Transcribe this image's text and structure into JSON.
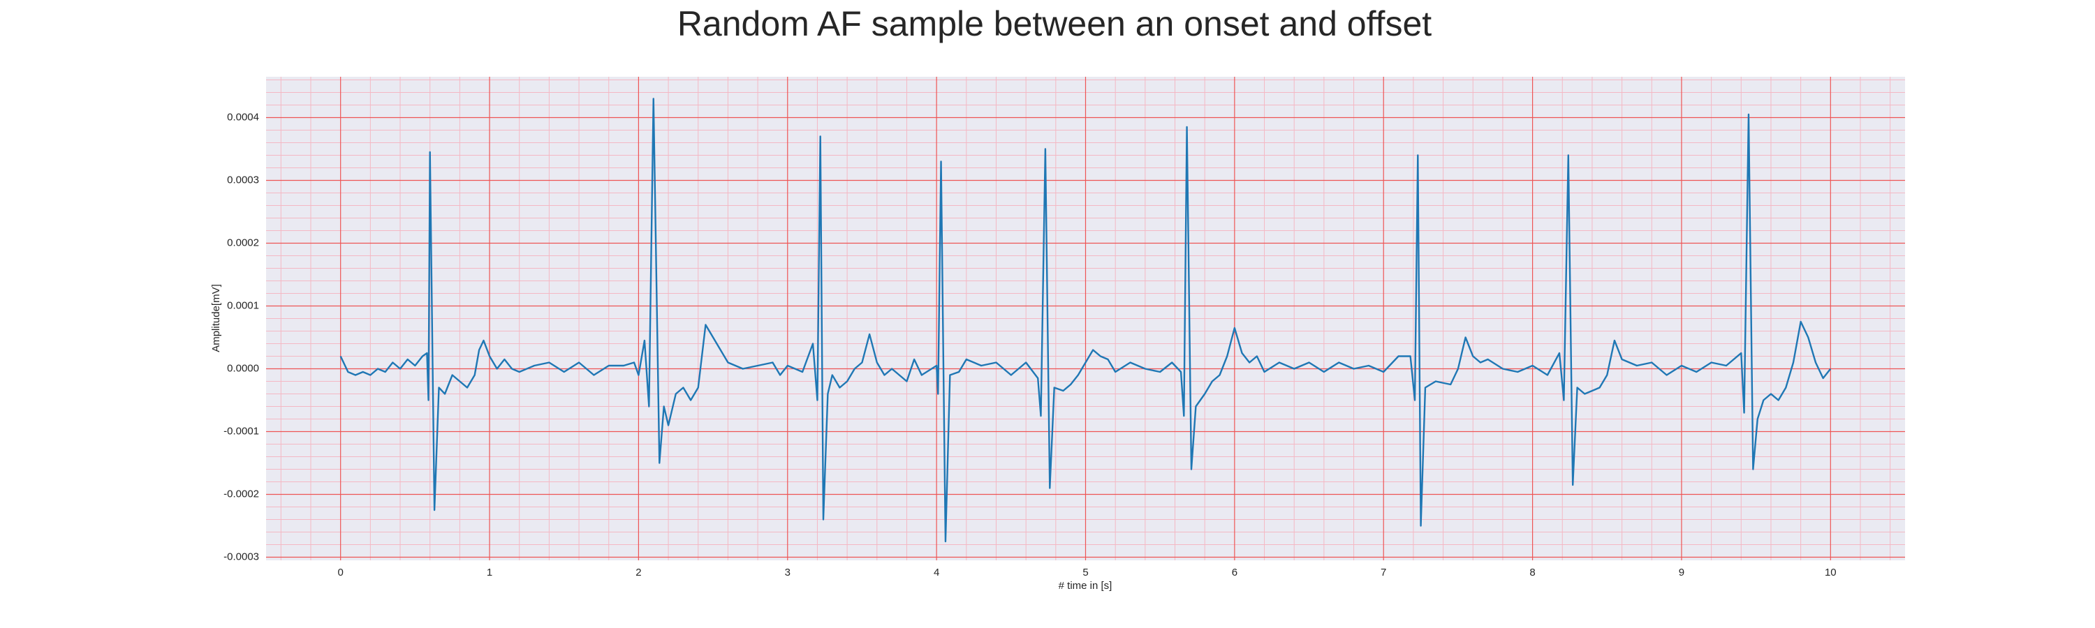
{
  "chart_data": {
    "type": "line",
    "title": "Random AF sample between an onset and offset",
    "xlabel": "# time in [s]",
    "ylabel": "Amplitude[mV]",
    "color": "#1f77b4",
    "grid": true,
    "minor_grid": true,
    "xlim": [
      -0.5,
      10.5
    ],
    "ylim": [
      -0.000305,
      0.000465
    ],
    "xticks": [
      0,
      1,
      2,
      3,
      4,
      5,
      6,
      7,
      8,
      9,
      10
    ],
    "yticks": [
      -0.0003,
      -0.0002,
      -0.0001,
      {
        "value": 0,
        "label": "0.0000"
      },
      0.0001,
      0.0002,
      0.0003,
      0.0004
    ],
    "x": [
      0,
      0.05,
      0.1,
      0.15,
      0.2,
      0.25,
      0.3,
      0.35,
      0.4,
      0.45,
      0.5,
      0.55,
      0.58,
      0.59,
      0.6,
      0.63,
      0.66,
      0.7,
      0.75,
      0.8,
      0.85,
      0.9,
      0.93,
      0.96,
      1.0,
      1.05,
      1.1,
      1.15,
      1.2,
      1.3,
      1.4,
      1.5,
      1.6,
      1.7,
      1.8,
      1.9,
      1.97,
      2.0,
      2.04,
      2.07,
      2.1,
      2.14,
      2.17,
      2.2,
      2.25,
      2.3,
      2.35,
      2.4,
      2.45,
      2.5,
      2.55,
      2.6,
      2.7,
      2.8,
      2.9,
      2.95,
      3.0,
      3.1,
      3.17,
      3.2,
      3.22,
      3.24,
      3.27,
      3.3,
      3.35,
      3.4,
      3.45,
      3.5,
      3.55,
      3.6,
      3.65,
      3.7,
      3.8,
      3.85,
      3.9,
      4.0,
      4.01,
      4.03,
      4.06,
      4.09,
      4.15,
      4.2,
      4.3,
      4.4,
      4.5,
      4.6,
      4.68,
      4.7,
      4.73,
      4.76,
      4.79,
      4.85,
      4.9,
      4.95,
      5.0,
      5.05,
      5.1,
      5.15,
      5.2,
      5.3,
      5.4,
      5.5,
      5.58,
      5.64,
      5.66,
      5.68,
      5.71,
      5.74,
      5.8,
      5.85,
      5.9,
      5.95,
      6.0,
      6.05,
      6.1,
      6.15,
      6.2,
      6.3,
      6.4,
      6.5,
      6.6,
      6.7,
      6.8,
      6.9,
      7.0,
      7.1,
      7.18,
      7.21,
      7.23,
      7.25,
      7.28,
      7.35,
      7.45,
      7.5,
      7.55,
      7.6,
      7.65,
      7.7,
      7.8,
      7.9,
      8.0,
      8.1,
      8.18,
      8.21,
      8.24,
      8.27,
      8.3,
      8.35,
      8.45,
      8.5,
      8.55,
      8.6,
      8.7,
      8.8,
      8.9,
      9.0,
      9.1,
      9.2,
      9.3,
      9.4,
      9.42,
      9.45,
      9.48,
      9.51,
      9.55,
      9.6,
      9.65,
      9.7,
      9.75,
      9.8,
      9.85,
      9.9,
      9.95,
      10.0
    ],
    "values": [
      2e-05,
      -5e-06,
      -1e-05,
      -5e-06,
      -1e-05,
      0,
      -5e-06,
      1e-05,
      0,
      1.5e-05,
      5e-06,
      2e-05,
      2.5e-05,
      -5e-05,
      0.000345,
      -0.000225,
      -3e-05,
      -4e-05,
      -1e-05,
      -2e-05,
      -3e-05,
      -1e-05,
      3e-05,
      4.5e-05,
      2e-05,
      0,
      1.5e-05,
      0,
      -5e-06,
      5e-06,
      1e-05,
      -5e-06,
      1e-05,
      -1e-05,
      5e-06,
      5e-06,
      1e-05,
      -1e-05,
      4.5e-05,
      -6e-05,
      0.00043,
      -0.00015,
      -6e-05,
      -9e-05,
      -4e-05,
      -3e-05,
      -5e-05,
      -3e-05,
      7e-05,
      5e-05,
      3e-05,
      1e-05,
      0,
      5e-06,
      1e-05,
      -1e-05,
      5e-06,
      -5e-06,
      4e-05,
      -5e-05,
      0.00037,
      -0.00024,
      -4e-05,
      -1e-05,
      -3e-05,
      -2e-05,
      0,
      1e-05,
      5.5e-05,
      1e-05,
      -1e-05,
      0,
      -2e-05,
      1.5e-05,
      -1e-05,
      5e-06,
      -4e-05,
      0.00033,
      -0.000275,
      -1e-05,
      -5e-06,
      1.5e-05,
      5e-06,
      1e-05,
      -1e-05,
      1e-05,
      -1.5e-05,
      -7.5e-05,
      0.00035,
      -0.00019,
      -3e-05,
      -3.5e-05,
      -2.5e-05,
      -1e-05,
      1e-05,
      3e-05,
      2e-05,
      1.5e-05,
      -5e-06,
      1e-05,
      0,
      -5e-06,
      1e-05,
      -5e-06,
      -7.5e-05,
      0.000385,
      -0.00016,
      -6e-05,
      -4e-05,
      -2e-05,
      -1e-05,
      2e-05,
      6.5e-05,
      2.5e-05,
      1e-05,
      2e-05,
      -5e-06,
      1e-05,
      0,
      1e-05,
      -5e-06,
      1e-05,
      0,
      5e-06,
      -5e-06,
      2e-05,
      2e-05,
      -5e-05,
      0.00034,
      -0.00025,
      -3e-05,
      -2e-05,
      -2.5e-05,
      0,
      5e-05,
      2e-05,
      1e-05,
      1.5e-05,
      0,
      -5e-06,
      5e-06,
      -1e-05,
      2.5e-05,
      -5e-05,
      0.00034,
      -0.000185,
      -3e-05,
      -4e-05,
      -3e-05,
      -1e-05,
      4.5e-05,
      1.5e-05,
      5e-06,
      1e-05,
      -1e-05,
      5e-06,
      -5e-06,
      1e-05,
      5e-06,
      2.5e-05,
      -7e-05,
      0.000405,
      -0.00016,
      -8e-05,
      -5e-05,
      -4e-05,
      -5e-05,
      -3e-05,
      1e-05,
      7.5e-05,
      5e-05,
      1e-05,
      -1.5e-05,
      0
    ]
  }
}
